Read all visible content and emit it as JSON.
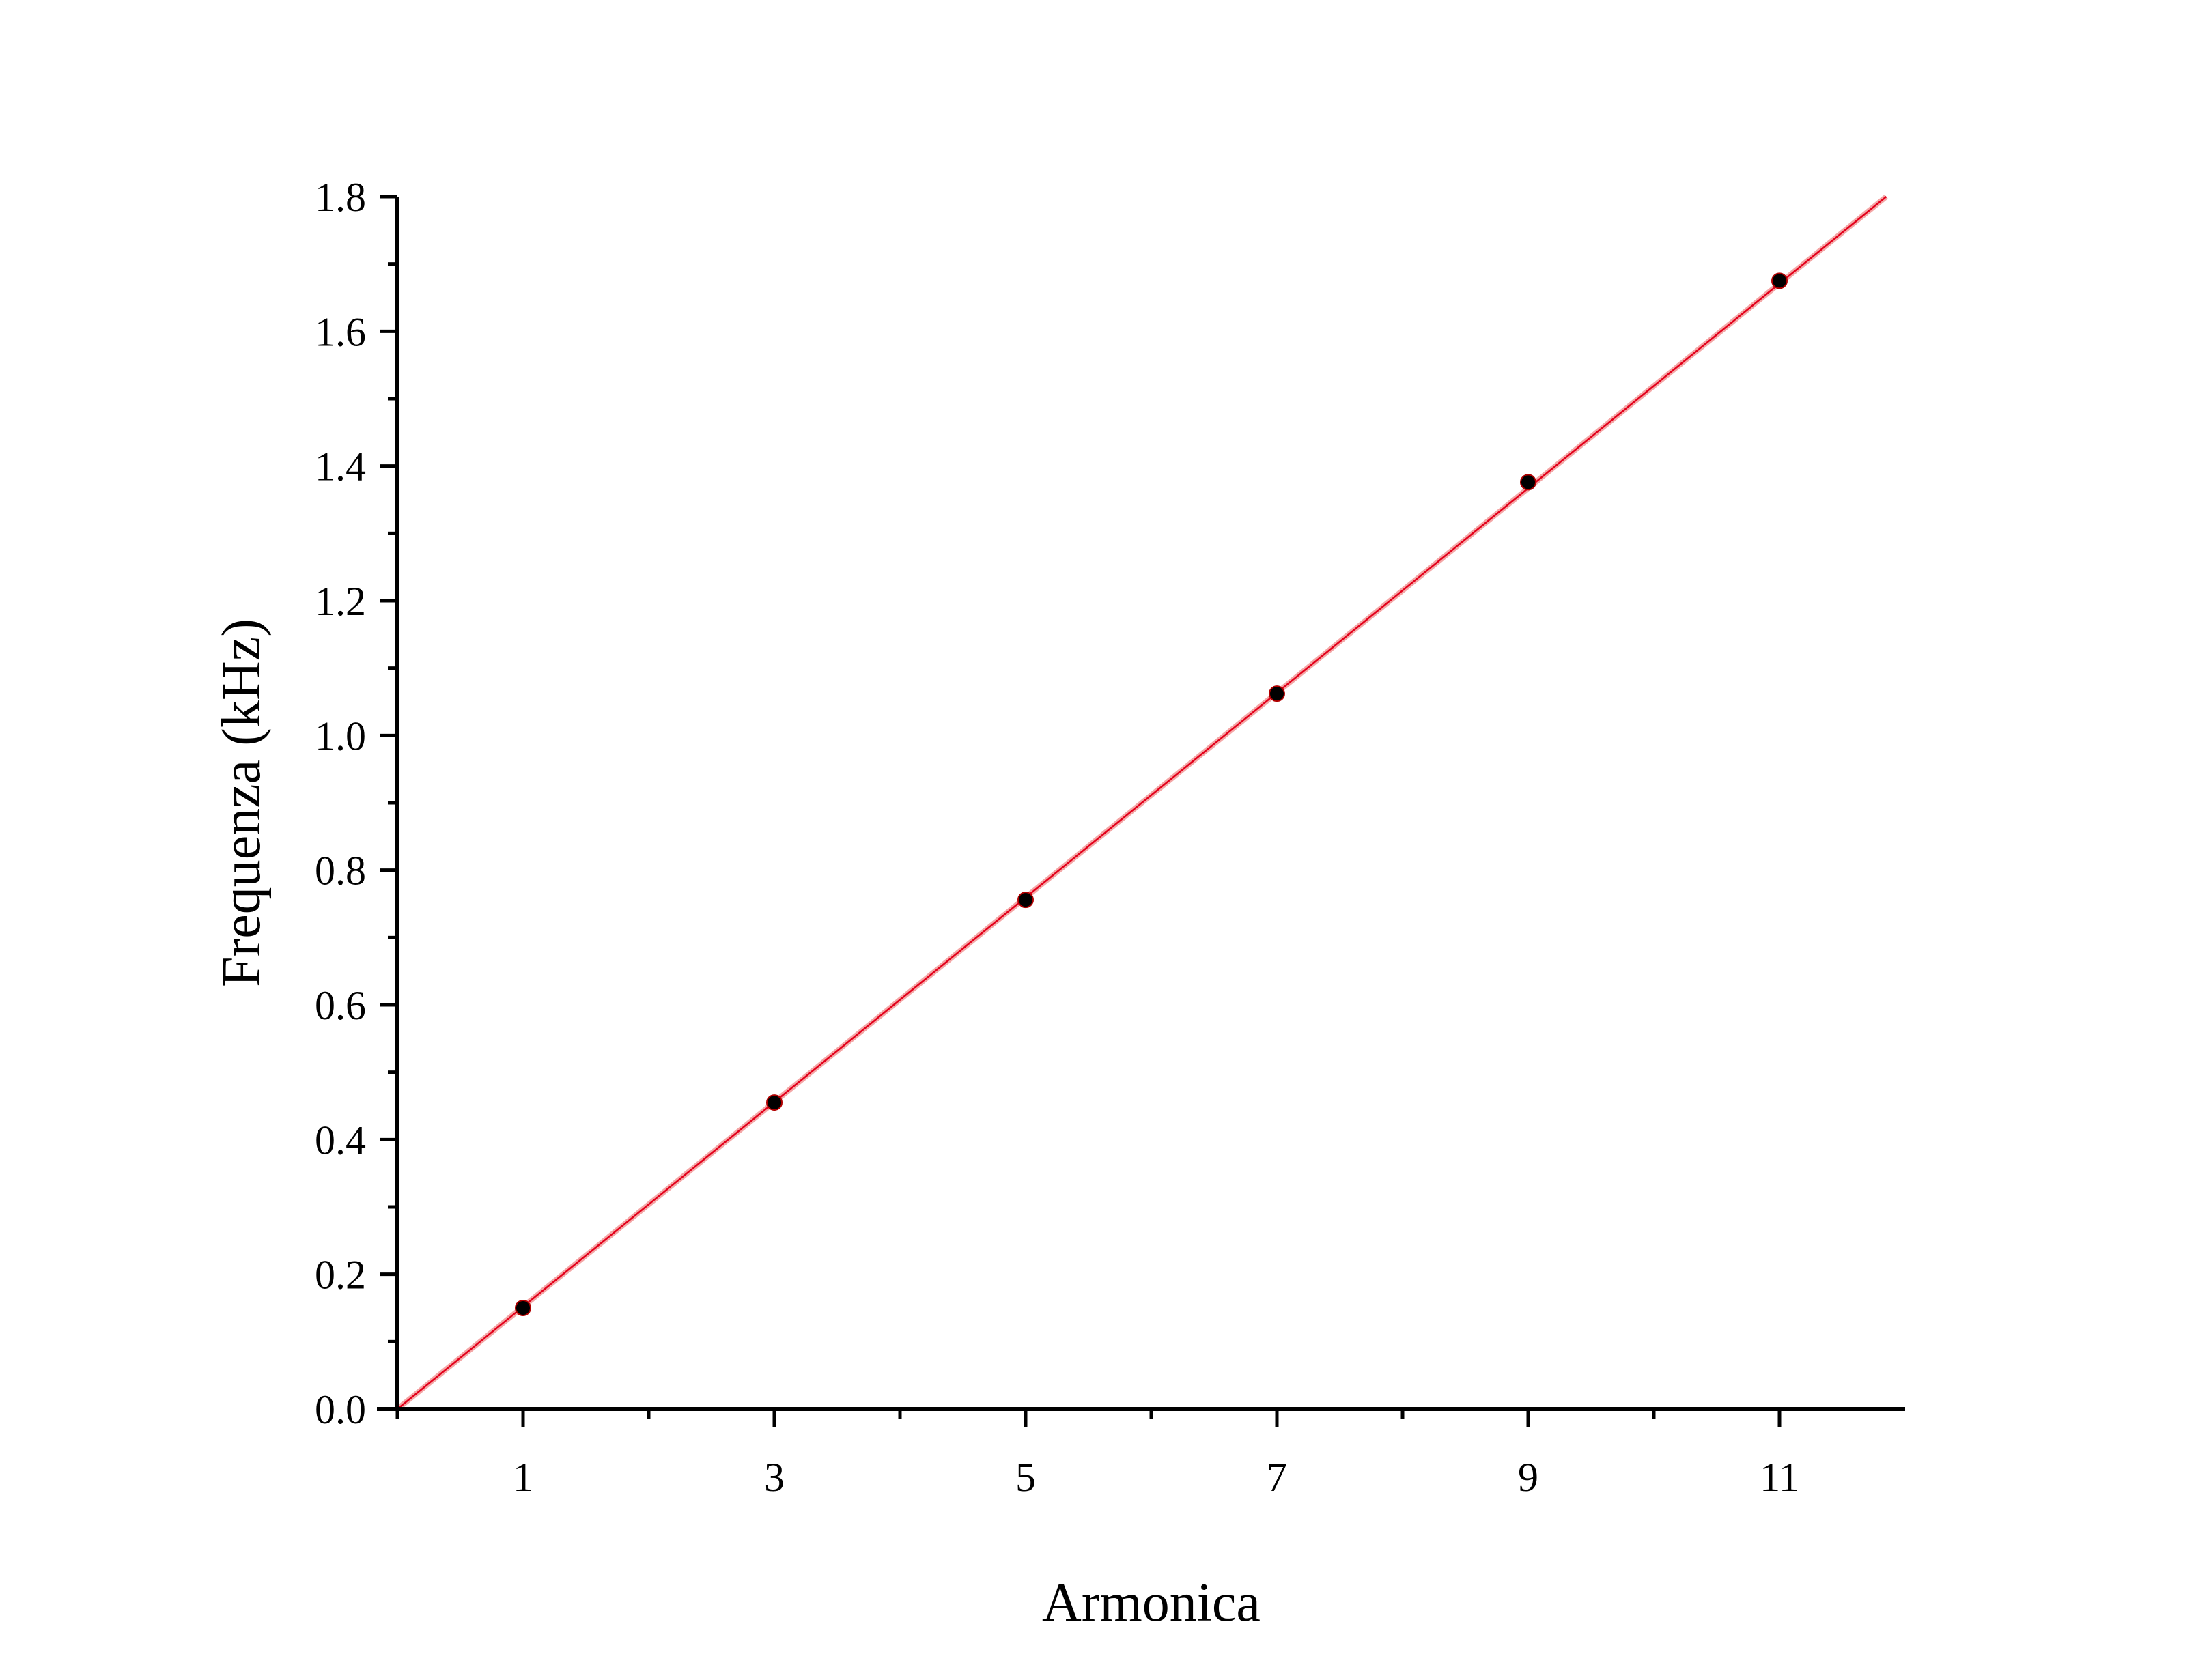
{
  "chart_data": {
    "type": "scatter",
    "xlabel": "Armonica",
    "ylabel": "Frequenza (kHz)",
    "xlim": [
      0,
      12
    ],
    "ylim": [
      0,
      1.8
    ],
    "x_ticks": [
      1,
      3,
      5,
      7,
      9,
      11
    ],
    "y_ticks": [
      0.0,
      0.2,
      0.4,
      0.6,
      0.8,
      1.0,
      1.2,
      1.4,
      1.6,
      1.8
    ],
    "x_tick_labels": [
      "1",
      "3",
      "5",
      "7",
      "9",
      "11"
    ],
    "y_tick_labels": [
      "0.0",
      "0.2",
      "0.4",
      "0.6",
      "0.8",
      "1.0",
      "1.2",
      "1.4",
      "1.6",
      "1.8"
    ],
    "grid": false,
    "series": [
      {
        "type": "scatter",
        "x": [
          1,
          3,
          5,
          7,
          9,
          11
        ],
        "y": [
          0.15,
          0.455,
          0.756,
          1.062,
          1.376,
          1.675
        ],
        "color": "#000000"
      },
      {
        "type": "line",
        "x": [
          0,
          11.85
        ],
        "y": [
          0,
          1.8
        ],
        "color": "#e3001b"
      }
    ]
  }
}
